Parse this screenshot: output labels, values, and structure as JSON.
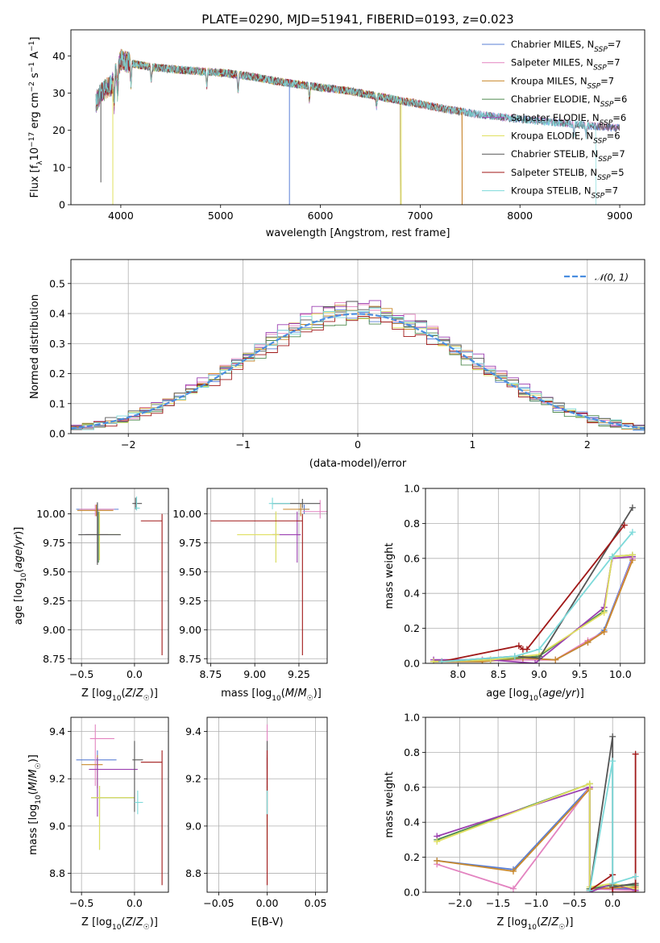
{
  "title": "PLATE=0290, MJD=51941, FIBERID=0193, z=0.023",
  "colors": {
    "chabrier_miles": "#5a7fd6",
    "salpeter_miles": "#e383c0",
    "kroupa_miles": "#c9892c",
    "chabrier_elodie": "#4f8a4f",
    "salpeter_elodie": "#9b3fb0",
    "kroupa_elodie": "#e0e060",
    "chabrier_stelib": "#555555",
    "salpeter_stelib": "#a01818",
    "kroupa_stelib": "#7ddada"
  },
  "chart_data": [
    {
      "id": "spectrum",
      "type": "line",
      "title": "PLATE=0290, MJD=51941, FIBERID=0193, z=0.023",
      "xlabel": "wavelength [Angstrom, rest frame]",
      "ylabel": "Flux [f_λ 10^-17 erg cm^-2 s^-1 A^-1]",
      "xlim": [
        3500,
        9250
      ],
      "ylim": [
        0,
        47
      ],
      "xticks": [
        4000,
        5000,
        6000,
        7000,
        8000,
        9000
      ],
      "yticks": [
        0,
        10,
        20,
        30,
        40
      ],
      "grid": false,
      "legend_position": "top-right",
      "continuum": {
        "x": [
          3740,
          3800,
          3900,
          3960,
          4000,
          4050,
          4100,
          4200,
          4300,
          4500,
          4700,
          5000,
          5300,
          5600,
          6000,
          6300,
          6600,
          7000,
          7300,
          7600,
          8000,
          8400,
          8800,
          9000
        ],
        "y": [
          27,
          30,
          32,
          36,
          39,
          38.5,
          38,
          37.5,
          37,
          36.5,
          36,
          35.5,
          34.5,
          33,
          31.5,
          30.5,
          29,
          27,
          25.5,
          24.2,
          23,
          22,
          21,
          20.5
        ]
      },
      "series": [
        {
          "name": "Chabrier MILES, N_SSP=7",
          "color": "#5a7fd6",
          "range": [
            3750,
            9000
          ]
        },
        {
          "name": "Salpeter MILES, N_SSP=7",
          "color": "#e383c0",
          "range": [
            3750,
            9000
          ]
        },
        {
          "name": "Kroupa MILES, N_SSP=7",
          "color": "#c9892c",
          "range": [
            3750,
            7420
          ]
        },
        {
          "name": "Chabrier ELODIE, N_SSP=6",
          "color": "#4f8a4f",
          "range": [
            3750,
            6800
          ]
        },
        {
          "name": "Salpeter ELODIE, N_SSP=6",
          "color": "#9b3fb0",
          "range": [
            3750,
            6800
          ]
        },
        {
          "name": "Kroupa ELODIE, N_SSP=6",
          "color": "#e0e060",
          "range": [
            3920,
            6800
          ]
        },
        {
          "name": "Chabrier STELIB, N_SSP=7",
          "color": "#555555",
          "range": [
            3750,
            9000
          ]
        },
        {
          "name": "Salpeter STELIB, N_SSP=5",
          "color": "#a01818",
          "range": [
            3750,
            7420
          ]
        },
        {
          "name": "Kroupa STELIB, N_SSP=7",
          "color": "#7ddada",
          "range": [
            3750,
            8760
          ]
        }
      ]
    },
    {
      "id": "residuals",
      "type": "line",
      "xlabel": "(data-model)/error",
      "ylabel": "Normed distribution",
      "xlim": [
        -2.5,
        2.5
      ],
      "ylim": [
        0,
        0.58
      ],
      "xticks": [
        -2,
        -1,
        0,
        1,
        2
      ],
      "yticks": [
        0.0,
        0.1,
        0.2,
        0.3,
        0.4,
        0.5
      ],
      "grid": true,
      "legend_position": "top-right",
      "reference": {
        "name": "𝒩(0, 1)",
        "color": "#4a8ee0"
      },
      "bin_width": 0.1,
      "amplitudes": [
        0.4,
        0.42,
        0.41,
        0.39,
        0.43,
        0.4,
        0.42,
        0.38,
        0.41
      ]
    },
    {
      "id": "age_vs_Z",
      "type": "scatter",
      "xlabel": "Z [log10(Z/Z☉)]",
      "ylabel": "age [log10(age/yr)]",
      "xlim": [
        -0.6,
        0.32
      ],
      "ylim": [
        8.71,
        10.22
      ],
      "xticks": [
        -0.5,
        0.0
      ],
      "yticks": [
        8.75,
        9.0,
        9.25,
        9.5,
        9.75,
        10.0
      ],
      "grid": true,
      "points": [
        {
          "x": -0.35,
          "y": 10.04,
          "xerr": [
            0.2,
            0.2
          ],
          "yerr": [
            0.05,
            0.05
          ],
          "color": "#5a7fd6"
        },
        {
          "x": -0.37,
          "y": 10.04,
          "xerr": [
            0.15,
            0.18
          ],
          "yerr": [
            0.06,
            0.04
          ],
          "color": "#e383c0"
        },
        {
          "x": -0.36,
          "y": 10.03,
          "xerr": [
            0.18,
            0.16
          ],
          "yerr": [
            0.05,
            0.05
          ],
          "color": "#c9892c"
        },
        {
          "x": -0.34,
          "y": 9.82,
          "xerr": [
            0.12,
            0.2
          ],
          "yerr": [
            0.24,
            0.2
          ],
          "color": "#4f8a4f"
        },
        {
          "x": -0.35,
          "y": 9.82,
          "xerr": [
            0.12,
            0.1
          ],
          "yerr": [
            0.24,
            0.2
          ],
          "color": "#9b3fb0"
        },
        {
          "x": -0.33,
          "y": 9.82,
          "xerr": [
            0.1,
            0.2
          ],
          "yerr": [
            0.22,
            0.2
          ],
          "color": "#e0e060"
        },
        {
          "x": -0.35,
          "y": 9.82,
          "xerr": [
            0.18,
            0.22
          ],
          "yerr": [
            0.26,
            0.28
          ],
          "color": "#555555"
        },
        {
          "x": 0.26,
          "y": 9.94,
          "xerr": [
            0.2,
            0.0
          ],
          "yerr": [
            1.16,
            0.06
          ],
          "color": "#a01818"
        },
        {
          "x": 0.01,
          "y": 10.09,
          "xerr": [
            0.03,
            0.06
          ],
          "yerr": [
            0.05,
            0.05
          ],
          "color": "#555555"
        },
        {
          "x": 0.02,
          "y": 10.05,
          "xerr": [
            0.02,
            0.03
          ],
          "yerr": [
            0.02,
            0.1
          ],
          "color": "#7ddada"
        }
      ]
    },
    {
      "id": "age_vs_mass",
      "type": "scatter",
      "xlabel": "mass [log10(M/M☉)]",
      "ylabel": "",
      "xlim": [
        8.73,
        9.41
      ],
      "ylim": [
        8.71,
        10.22
      ],
      "xticks": [
        8.75,
        9.0,
        9.25
      ],
      "yticks": [
        8.75,
        9.0,
        9.25,
        9.5,
        9.75,
        10.0
      ],
      "grid": true,
      "points": [
        {
          "x": 9.28,
          "y": 10.04,
          "xerr": [
            0.03,
            0.03
          ],
          "yerr": [
            0.04,
            0.04
          ],
          "color": "#5a7fd6"
        },
        {
          "x": 9.37,
          "y": 10.02,
          "xerr": [
            0.1,
            0.05
          ],
          "yerr": [
            0.06,
            0.1
          ],
          "color": "#e383c0"
        },
        {
          "x": 9.26,
          "y": 10.04,
          "xerr": [
            0.1,
            0.05
          ],
          "yerr": [
            0.06,
            0.05
          ],
          "color": "#c9892c"
        },
        {
          "x": 9.12,
          "y": 9.82,
          "xerr": [
            0.02,
            0.02
          ],
          "yerr": [
            0.24,
            0.2
          ],
          "color": "#4f8a4f"
        },
        {
          "x": 9.24,
          "y": 9.82,
          "xerr": [
            0.14,
            0.02
          ],
          "yerr": [
            0.24,
            0.2
          ],
          "color": "#9b3fb0"
        },
        {
          "x": 9.12,
          "y": 9.82,
          "xerr": [
            0.22,
            0.02
          ],
          "yerr": [
            0.24,
            0.2
          ],
          "color": "#e0e060"
        },
        {
          "x": 9.27,
          "y": 10.09,
          "xerr": [
            0.17,
            0.1
          ],
          "yerr": [
            0.04,
            0.04
          ],
          "color": "#555555"
        },
        {
          "x": 9.27,
          "y": 9.94,
          "xerr": [
            0.52,
            0.0
          ],
          "yerr": [
            1.16,
            0.06
          ],
          "color": "#a01818"
        },
        {
          "x": 9.1,
          "y": 10.09,
          "xerr": [
            0.02,
            0.1
          ],
          "yerr": [
            0.05,
            0.05
          ],
          "color": "#7ddada"
        }
      ]
    },
    {
      "id": "weight_vs_age",
      "type": "line",
      "xlabel": "age [log10(age/yr)]",
      "ylabel": "mass weight",
      "xlim": [
        7.6,
        10.3
      ],
      "ylim": [
        0,
        1
      ],
      "xticks": [
        8.0,
        8.5,
        9.0,
        9.5,
        10.0
      ],
      "yticks": [
        0.0,
        0.2,
        0.4,
        0.6,
        0.8,
        1.0
      ],
      "grid": true,
      "series": [
        {
          "color": "#5a7fd6",
          "x": [
            7.7,
            8.3,
            8.8,
            9.2,
            9.6,
            9.8,
            10.15
          ],
          "y": [
            0.01,
            0.02,
            0.03,
            0.02,
            0.12,
            0.19,
            0.61
          ]
        },
        {
          "color": "#e383c0",
          "x": [
            7.7,
            8.3,
            8.8,
            9.2,
            9.6,
            9.8,
            10.15
          ],
          "y": [
            0.01,
            0.02,
            0.02,
            0.02,
            0.13,
            0.18,
            0.6
          ]
        },
        {
          "color": "#c9892c",
          "x": [
            7.7,
            8.3,
            8.8,
            9.2,
            9.6,
            9.8,
            10.15
          ],
          "y": [
            0.01,
            0.01,
            0.03,
            0.02,
            0.12,
            0.18,
            0.59
          ]
        },
        {
          "color": "#4f8a4f",
          "x": [
            7.7,
            8.4,
            9.0,
            9.8,
            9.9,
            10.15
          ],
          "y": [
            0.01,
            0.02,
            0.04,
            0.3,
            0.61,
            0.62
          ]
        },
        {
          "color": "#9b3fb0",
          "x": [
            7.7,
            8.4,
            8.95,
            9.8,
            9.9,
            10.15
          ],
          "y": [
            0.02,
            0.02,
            0.0,
            0.32,
            0.6,
            0.61
          ]
        },
        {
          "color": "#e0e060",
          "x": [
            7.7,
            8.4,
            9.0,
            9.8,
            9.9,
            10.15
          ],
          "y": [
            0.01,
            0.02,
            0.05,
            0.29,
            0.61,
            0.62
          ]
        },
        {
          "color": "#555555",
          "x": [
            7.8,
            8.7,
            9.0,
            10.15
          ],
          "y": [
            0.01,
            0.04,
            0.03,
            0.89
          ]
        },
        {
          "color": "#a01818",
          "x": [
            7.8,
            8.75,
            8.8,
            8.85,
            10.05
          ],
          "y": [
            0.01,
            0.1,
            0.08,
            0.08,
            0.79
          ]
        },
        {
          "color": "#7ddada",
          "x": [
            7.8,
            8.7,
            9.0,
            9.9,
            10.15
          ],
          "y": [
            0.01,
            0.04,
            0.08,
            0.61,
            0.75
          ]
        }
      ]
    },
    {
      "id": "mass_vs_Z",
      "type": "scatter",
      "xlabel": "Z [log10(Z/Z☉)]",
      "ylabel": "mass [log10(M/M☉)]",
      "xlim": [
        -0.6,
        0.32
      ],
      "ylim": [
        8.72,
        9.46
      ],
      "xticks": [
        -0.5,
        0.0
      ],
      "yticks": [
        8.8,
        9.0,
        9.2,
        9.4
      ],
      "grid": true,
      "points": [
        {
          "x": -0.35,
          "y": 9.28,
          "xerr": [
            0.2,
            0.18
          ],
          "yerr": [
            0.04,
            0.04
          ],
          "color": "#5a7fd6"
        },
        {
          "x": -0.37,
          "y": 9.37,
          "xerr": [
            0.05,
            0.18
          ],
          "yerr": [
            0.2,
            0.06
          ],
          "color": "#e383c0"
        },
        {
          "x": -0.35,
          "y": 9.26,
          "xerr": [
            0.15,
            0.05
          ],
          "yerr": [
            0.1,
            0.04
          ],
          "color": "#c9892c"
        },
        {
          "x": -0.33,
          "y": 9.12,
          "xerr": [
            0.08,
            0.33
          ],
          "yerr": [
            0.22,
            0.05
          ],
          "color": "#4f8a4f"
        },
        {
          "x": -0.35,
          "y": 9.24,
          "xerr": [
            0.08,
            0.38
          ],
          "yerr": [
            0.2,
            0.05
          ],
          "color": "#9b3fb0"
        },
        {
          "x": -0.33,
          "y": 9.12,
          "xerr": [
            0.08,
            0.33
          ],
          "yerr": [
            0.22,
            0.05
          ],
          "color": "#e0e060"
        },
        {
          "x": 0.0,
          "y": 9.28,
          "xerr": [
            0.02,
            0.08
          ],
          "yerr": [
            0.22,
            0.08
          ],
          "color": "#555555"
        },
        {
          "x": 0.26,
          "y": 9.27,
          "xerr": [
            0.2,
            0.0
          ],
          "yerr": [
            0.52,
            0.05
          ],
          "color": "#a01818"
        },
        {
          "x": 0.03,
          "y": 9.1,
          "xerr": [
            0.03,
            0.05
          ],
          "yerr": [
            0.05,
            0.05
          ],
          "color": "#7ddada"
        }
      ]
    },
    {
      "id": "mass_vs_EBV",
      "type": "scatter",
      "xlabel": "E(B-V)",
      "ylabel": "",
      "xlim": [
        -0.062,
        0.062
      ],
      "ylim": [
        8.72,
        9.46
      ],
      "xticks": [
        -0.05,
        0.0,
        0.05
      ],
      "yticks": [
        8.8,
        9.0,
        9.2,
        9.4
      ],
      "grid": true,
      "points": [
        {
          "x": 0.0,
          "y": 9.28,
          "yerr": [
            0.04,
            0.04
          ],
          "color": "#5a7fd6"
        },
        {
          "x": 0.0,
          "y": 9.37,
          "yerr": [
            0.2,
            0.06
          ],
          "color": "#e383c0"
        },
        {
          "x": 0.0,
          "y": 9.26,
          "yerr": [
            0.1,
            0.04
          ],
          "color": "#c9892c"
        },
        {
          "x": 0.0,
          "y": 9.12,
          "yerr": [
            0.22,
            0.05
          ],
          "color": "#4f8a4f"
        },
        {
          "x": 0.0,
          "y": 9.24,
          "yerr": [
            0.2,
            0.05
          ],
          "color": "#9b3fb0"
        },
        {
          "x": 0.0,
          "y": 9.12,
          "yerr": [
            0.22,
            0.05
          ],
          "color": "#e0e060"
        },
        {
          "x": 0.0,
          "y": 9.28,
          "yerr": [
            0.22,
            0.08
          ],
          "color": "#555555"
        },
        {
          "x": 0.0,
          "y": 9.27,
          "yerr": [
            0.52,
            0.05
          ],
          "color": "#a01818"
        },
        {
          "x": 0.0,
          "y": 9.1,
          "yerr": [
            0.05,
            0.05
          ],
          "color": "#7ddada"
        }
      ]
    },
    {
      "id": "weight_vs_Z",
      "type": "line",
      "xlabel": "Z [log10(Z/Z☉)]",
      "ylabel": "mass weight",
      "xlim": [
        -2.45,
        0.42
      ],
      "ylim": [
        0,
        1
      ],
      "xticks": [
        -2.0,
        -1.5,
        -1.0,
        -0.5,
        0.0
      ],
      "yticks": [
        0.0,
        0.2,
        0.4,
        0.6,
        0.8,
        1.0
      ],
      "grid": true,
      "series": [
        {
          "color": "#5a7fd6",
          "x": [
            -2.3,
            -1.3,
            -0.3,
            -0.3,
            0.3
          ],
          "y": [
            0.18,
            0.13,
            0.6,
            0.02,
            0.02
          ]
        },
        {
          "color": "#e383c0",
          "x": [
            -2.3,
            -1.3,
            -0.3,
            -0.3,
            0.3
          ],
          "y": [
            0.16,
            0.02,
            0.6,
            0.02,
            0.01
          ]
        },
        {
          "color": "#c9892c",
          "x": [
            -2.3,
            -1.3,
            -0.3,
            -0.3,
            0.3
          ],
          "y": [
            0.18,
            0.12,
            0.59,
            0.02,
            0.03
          ]
        },
        {
          "color": "#4f8a4f",
          "x": [
            -2.3,
            -0.3,
            -0.3,
            0.0,
            0.3
          ],
          "y": [
            0.3,
            0.62,
            0.02,
            0.04,
            0.04
          ]
        },
        {
          "color": "#9b3fb0",
          "x": [
            -2.3,
            -0.3,
            -0.3,
            0.0,
            0.3
          ],
          "y": [
            0.32,
            0.6,
            0.0,
            0.05,
            0.01
          ]
        },
        {
          "color": "#e0e060",
          "x": [
            -2.3,
            -0.3,
            -0.3,
            0.0,
            0.3
          ],
          "y": [
            0.29,
            0.62,
            0.03,
            0.05,
            0.02
          ]
        },
        {
          "color": "#555555",
          "x": [
            -0.3,
            0.0,
            0.0,
            0.3
          ],
          "y": [
            0.01,
            0.89,
            0.03,
            0.05
          ]
        },
        {
          "color": "#a01818",
          "x": [
            -0.3,
            0.0,
            0.0,
            0.3,
            0.3
          ],
          "y": [
            0.01,
            0.1,
            0.0,
            0.0,
            0.79
          ]
        },
        {
          "color": "#7ddada",
          "x": [
            -0.3,
            0.0,
            0.0,
            0.3
          ],
          "y": [
            0.01,
            0.75,
            0.05,
            0.09
          ]
        }
      ]
    }
  ]
}
